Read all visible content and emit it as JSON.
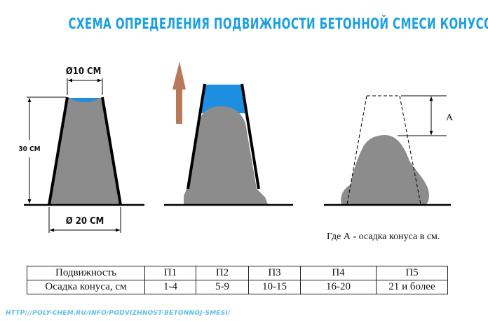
{
  "title": "СХЕМА ОПРЕДЕЛЕНИЯ ПОДВИЖНОСТИ БЕТОННОЙ СМЕСИ КОНУСОМ",
  "dimensions": {
    "top_diameter": "Ø10 СМ",
    "bottom_diameter": "Ø 20 СМ",
    "height": "30 СМ",
    "slump_symbol": "А"
  },
  "note": "Где А - осадка конуса в см.",
  "table": {
    "row1_header": "Подвижность",
    "row2_header": "Осадка конуса, см",
    "grades": [
      "П1",
      "П2",
      "П3",
      "П4",
      "П5"
    ],
    "slumps": [
      "1-4",
      "5-9",
      "10-15",
      "16-20",
      "21 и более"
    ]
  },
  "source_url": "HTTP://POLY-CHEM.RU/INFO/PODVIZHNOST-BETONNOJ-SMESI/",
  "colors": {
    "title": "#1a9fe0",
    "concrete": "#8c8c8c",
    "water": "#1e8fe0",
    "arrow": "#b8785a"
  },
  "icons": [
    "lift-arrow-icon"
  ]
}
